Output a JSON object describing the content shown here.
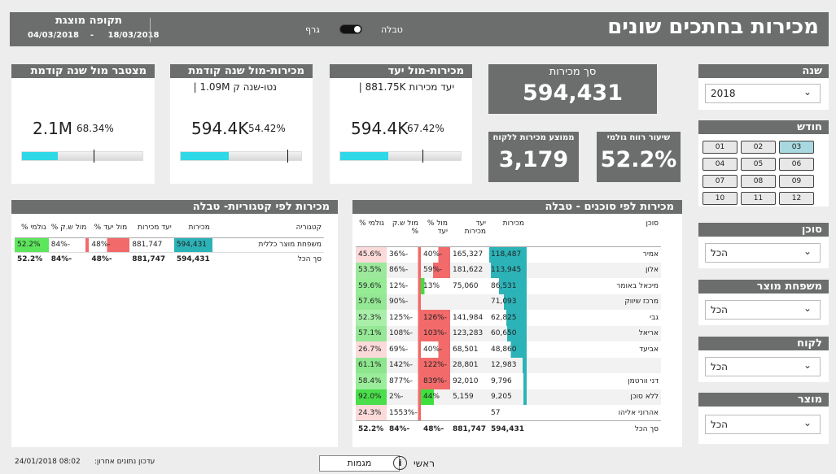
{
  "header": {
    "title": "מכירות בחתכים שונים",
    "period_title": "תקופה מוצגת",
    "period_to": "18/03/2018",
    "period_dash": "-",
    "period_from": "04/03/2018",
    "toggle_left_label": "גרף",
    "toggle_right_label": "טבלה"
  },
  "kpi": {
    "cumulative": {
      "title": "מצטבר מול שנה קודמת",
      "value": "2.1M",
      "pct": "68.34%",
      "progress": 0.3
    },
    "sales_vs_prev": {
      "title": "מכירות-מול שנה קודמת",
      "sub": "נטו-שנה ק 1.09M |",
      "value": "594.4K",
      "pct": "54.42%",
      "progress": 0.4
    },
    "sales_vs_target": {
      "title": "מכירות-מול יעד",
      "sub": "יעד מכירות 881.75K |",
      "value": "594.4K",
      "pct": "67.42%",
      "progress": 0.4
    }
  },
  "totals": {
    "sales_label": "סך מכירות",
    "sales_value": "594,431",
    "avg_label": "ממוצע מכירות ללקוח",
    "avg_value": "3,179",
    "margin_label": "שיעור רווח גולמי",
    "margin_value": "52.2%"
  },
  "slicers": {
    "year": {
      "label": "שנה",
      "value": "2018"
    },
    "month": {
      "label": "חודש",
      "items": [
        "01",
        "02",
        "03",
        "04",
        "05",
        "06",
        "07",
        "08",
        "09",
        "10",
        "11",
        "12"
      ],
      "selected": "03"
    },
    "agent": {
      "label": "סוכן",
      "value": "הכל"
    },
    "family": {
      "label": "משפחת מוצר",
      "value": "הכל"
    },
    "customer": {
      "label": "לקוח",
      "value": "הכל"
    },
    "product": {
      "label": "מוצר",
      "value": "הכל"
    }
  },
  "cat_table": {
    "title": "מכירות לפי קטגוריות- טבלה",
    "headers": [
      "קטגוריה",
      "מכירות",
      "יעד מכירות",
      "מול יעד %",
      "מול ש.ק %",
      "גולמי %"
    ],
    "rows": [
      {
        "name": "משפחת מוצר כללית",
        "sales": "594,431",
        "target": "881,747",
        "vs_target": "-48%",
        "vs_prev": "-84%",
        "margin": "52.2%"
      }
    ],
    "total": {
      "name": "סך הכל",
      "sales": "594,431",
      "target": "881,747",
      "vs_target": "-48%",
      "vs_prev": "-84%",
      "margin": "52.2%"
    }
  },
  "agent_table": {
    "title": "מכירות לפי סוכנים - טבלה",
    "headers": [
      "סוכן",
      "מכירות",
      "יעד מכירות",
      "מול % יעד",
      "מול ש.ק %",
      "גולמי %"
    ],
    "rows": [
      {
        "name": "אמיר",
        "sales": "118,487",
        "target": "165,327",
        "vs_target": "-40%",
        "vs_prev": "-36%",
        "margin": "45.6%",
        "sales_frac": 0.98,
        "vt": -0.4,
        "vp": -0.36,
        "mg": 0.46
      },
      {
        "name": "אלון",
        "sales": "113,945",
        "target": "181,622",
        "vs_target": "-59%",
        "vs_prev": "-86%",
        "margin": "53.5%",
        "sales_frac": 0.94,
        "vt": -0.59,
        "vp": -0.86,
        "mg": 0.54
      },
      {
        "name": "מיכאל באומר",
        "sales": "86,531",
        "target": "75,060",
        "vs_target": "13%",
        "vs_prev": "-12%",
        "margin": "59.6%",
        "sales_frac": 0.72,
        "vt": 0.13,
        "vp": -0.12,
        "mg": 0.6
      },
      {
        "name": "מרכז שיווק",
        "sales": "71,093",
        "target": "",
        "vs_target": "",
        "vs_prev": "-90%",
        "margin": "57.6%",
        "sales_frac": 0.6,
        "vt": 0,
        "vp": -0.9,
        "mg": 0.58
      },
      {
        "name": "גבי",
        "sales": "62,825",
        "target": "141,984",
        "vs_target": "-126%",
        "vs_prev": "-125%",
        "margin": "52.3%",
        "sales_frac": 0.53,
        "vt": -1.0,
        "vp": -1.0,
        "mg": 0.52
      },
      {
        "name": "אריאל",
        "sales": "60,650",
        "target": "123,283",
        "vs_target": "-103%",
        "vs_prev": "-108%",
        "margin": "57.1%",
        "sales_frac": 0.51,
        "vt": -1.0,
        "vp": -1.0,
        "mg": 0.57
      },
      {
        "name": "אביעד",
        "sales": "48,860",
        "target": "68,501",
        "vs_target": "-40%",
        "vs_prev": "-69%",
        "margin": "26.7%",
        "sales_frac": 0.41,
        "vt": -0.4,
        "vp": -0.69,
        "mg": 0.27
      },
      {
        "name": "",
        "sales": "12,983",
        "target": "28,801",
        "vs_target": "-122%",
        "vs_prev": "-142%",
        "margin": "61.1%",
        "sales_frac": 0.11,
        "vt": -1.0,
        "vp": -1.0,
        "mg": 0.61
      },
      {
        "name": "דני וורטמן",
        "sales": "9,796",
        "target": "92,010",
        "vs_target": "-839%",
        "vs_prev": "-877%",
        "margin": "58.4%",
        "sales_frac": 0.08,
        "vt": -1.0,
        "vp": -1.0,
        "mg": 0.58
      },
      {
        "name": "ללא סוכן",
        "sales": "9,205",
        "target": "5,159",
        "vs_target": "44%",
        "vs_prev": "-2%",
        "margin": "92.0%",
        "sales_frac": 0.08,
        "vt": 0.44,
        "vp": -0.02,
        "mg": 0.92
      },
      {
        "name": "אהרוני אליהו",
        "sales": "57",
        "target": "",
        "vs_target": "",
        "vs_prev": "-1553%",
        "margin": "24.3%",
        "sales_frac": 0.0,
        "vt": 0,
        "vp": -1.0,
        "mg": 0.24
      }
    ],
    "total": {
      "name": "סך הכל",
      "sales": "594,431",
      "target": "881,747",
      "vs_target": "-48%",
      "vs_prev": "-84%",
      "margin": "52.2%"
    }
  },
  "footer": {
    "updated_label": "עדכון נתונים אחרון:",
    "updated_value": "24/01/2018 08:02",
    "filters_button": "מגמות",
    "main_label": "ראשי"
  }
}
